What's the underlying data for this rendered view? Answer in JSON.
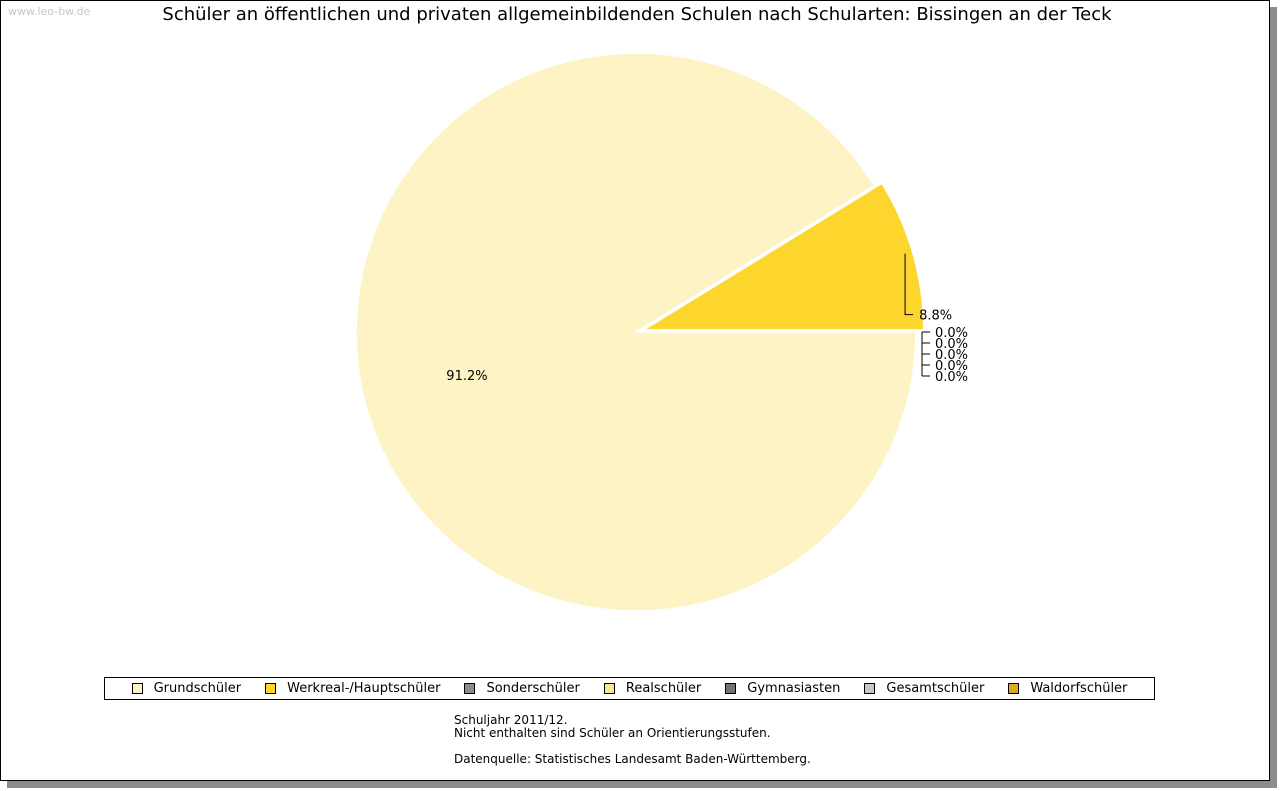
{
  "watermark": "www.leo-bw.de",
  "chart_data": {
    "type": "pie",
    "title": "Schüler an öffentlichen und privaten allgemeinbildenden Schulen nach Schularten: Bissingen an der Teck",
    "slices": [
      {
        "name": "Grundschüler",
        "value": 91.2,
        "label": "91.2%",
        "color": "#fdf3c4"
      },
      {
        "name": "Werkreal-/Hauptschüler",
        "value": 8.8,
        "label": "8.8%",
        "color": "#fcd62c",
        "exploded": true
      },
      {
        "name": "Sonderschüler",
        "value": 0.0,
        "label": "0.0%",
        "color": "#8c8c8c"
      },
      {
        "name": "Realschüler",
        "value": 0.0,
        "label": "0.0%",
        "color": "#fbe58e"
      },
      {
        "name": "Gymnasiasten",
        "value": 0.0,
        "label": "0.0%",
        "color": "#737373"
      },
      {
        "name": "Gesamtschüler",
        "value": 0.0,
        "label": "0.0%",
        "color": "#c8c8c8"
      },
      {
        "name": "Waldorfschüler",
        "value": 0.0,
        "label": "0.0%",
        "color": "#e0a81e"
      }
    ],
    "legend_position": "bottom"
  },
  "notes": {
    "line1": "Schuljahr 2011/12.",
    "line2": "Nicht enthalten sind Schüler an Orientierungsstufen.",
    "source": "Datenquelle: Statistisches Landesamt Baden-Württemberg."
  }
}
